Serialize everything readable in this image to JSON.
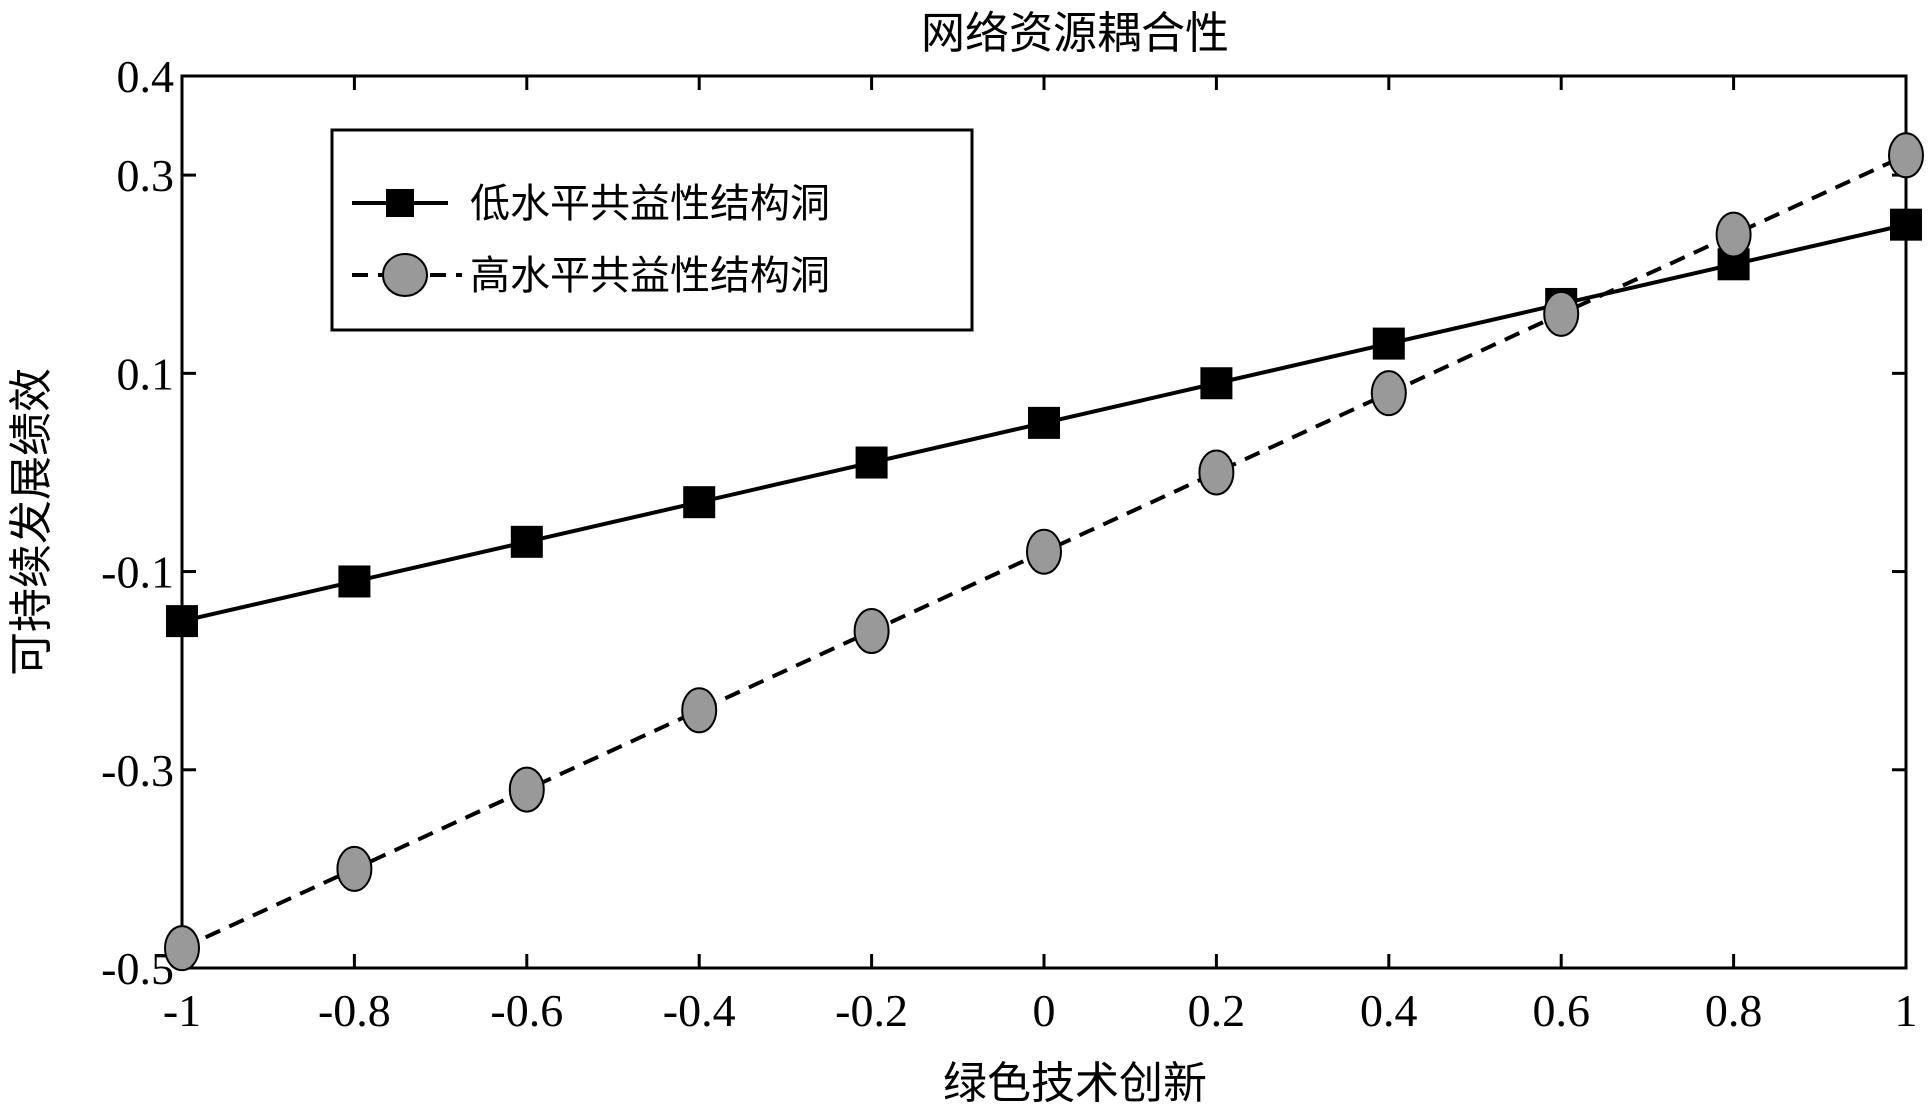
{
  "chart_data": {
    "type": "line",
    "title": "网络资源耦合性",
    "xlabel": "绿色技术创新",
    "ylabel": "可持续发展绩效",
    "x": [
      -1,
      -0.8,
      -0.6,
      -0.4,
      -0.2,
      0,
      0.2,
      0.4,
      0.6,
      0.8,
      1
    ],
    "xlim": [
      -1,
      1
    ],
    "ylim": [
      -0.5,
      0.4
    ],
    "xticks": [
      "-1",
      "-0.8",
      "-0.6",
      "-0.4",
      "-0.2",
      "0",
      "0.2",
      "0.4",
      "0.6",
      "0.8",
      "1"
    ],
    "yticks": [
      "0.4",
      "0.3",
      "0.1",
      "-0.1",
      "-0.3",
      "-0.5"
    ],
    "ytick_values": [
      0.4,
      0.3,
      0.1,
      -0.1,
      -0.3,
      -0.5
    ],
    "grid": false,
    "legend_position": "top-left",
    "series": [
      {
        "name": "低水平共益性结构洞",
        "values": [
          -0.15,
          -0.11,
          -0.07,
          -0.03,
          0.01,
          0.05,
          0.09,
          0.13,
          0.17,
          0.21,
          0.25
        ],
        "line_style": "solid",
        "marker": "square",
        "marker_color": "#000000",
        "line_color": "#000000"
      },
      {
        "name": "高水平共益性结构洞",
        "values": [
          -0.48,
          -0.4,
          -0.32,
          -0.24,
          -0.16,
          -0.08,
          0.0,
          0.08,
          0.16,
          0.24,
          0.32
        ],
        "line_style": "dashed",
        "marker": "circle",
        "marker_color": "#999999",
        "line_color": "#000000"
      }
    ]
  }
}
